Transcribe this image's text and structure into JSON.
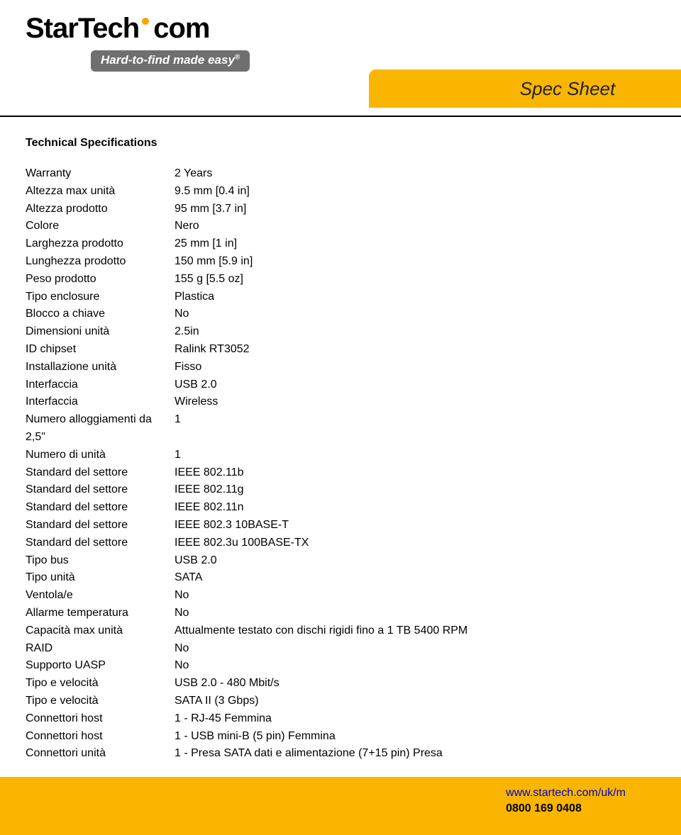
{
  "brand": {
    "logo_left": "StarTech",
    "logo_right": "com",
    "tagline": "Hard-to-find made easy",
    "tagline_mark": "®",
    "tab_label": "Spec Sheet",
    "dot_color": "#f7a400",
    "tab_color": "#f9b500",
    "tagline_bg": "#6f6f6f"
  },
  "section_title": "Technical Specifications",
  "specs": [
    {
      "label": "Warranty",
      "value": "2 Years"
    },
    {
      "label": "Altezza max unità",
      "value": "9.5 mm [0.4 in]"
    },
    {
      "label": "Altezza prodotto",
      "value": "95 mm [3.7 in]"
    },
    {
      "label": "Colore",
      "value": "Nero"
    },
    {
      "label": "Larghezza prodotto",
      "value": "25 mm [1 in]"
    },
    {
      "label": "Lunghezza prodotto",
      "value": "150 mm [5.9 in]"
    },
    {
      "label": "Peso prodotto",
      "value": "155 g [5.5 oz]"
    },
    {
      "label": "Tipo enclosure",
      "value": "Plastica"
    },
    {
      "label": "Blocco a chiave",
      "value": "No"
    },
    {
      "label": "Dimensioni unità",
      "value": "2.5in"
    },
    {
      "label": "ID chipset",
      "value": "Ralink RT3052"
    },
    {
      "label": "Installazione unità",
      "value": "Fisso"
    },
    {
      "label": "Interfaccia",
      "value": "USB 2.0"
    },
    {
      "label": "Interfaccia",
      "value": "Wireless"
    },
    {
      "label": "Numero alloggiamenti da 2,5\"",
      "value": "1"
    },
    {
      "label": "Numero di unità",
      "value": "1"
    },
    {
      "label": "Standard del settore",
      "value": "IEEE 802.11b"
    },
    {
      "label": "Standard del settore",
      "value": "IEEE 802.11g"
    },
    {
      "label": "Standard del settore",
      "value": "IEEE 802.11n"
    },
    {
      "label": "Standard del settore",
      "value": "IEEE 802.3 10BASE-T"
    },
    {
      "label": "Standard del settore",
      "value": "IEEE 802.3u 100BASE-TX"
    },
    {
      "label": "Tipo bus",
      "value": "USB 2.0"
    },
    {
      "label": "Tipo unità",
      "value": "SATA"
    },
    {
      "label": "Ventola/e",
      "value": "No"
    },
    {
      "label": "Allarme temperatura",
      "value": "No"
    },
    {
      "label": "Capacità max unità",
      "value": "Attualmente testato con dischi rigidi fino a 1 TB 5400 RPM"
    },
    {
      "label": "RAID",
      "value": "No"
    },
    {
      "label": "Supporto UASP",
      "value": "No"
    },
    {
      "label": "Tipo e velocità",
      "value": "USB 2.0 - 480 Mbit/s"
    },
    {
      "label": "Tipo e velocità",
      "value": "SATA II (3 Gbps)"
    },
    {
      "label": "Connettori host",
      "value": "1 - RJ-45 Femmina"
    },
    {
      "label": "Connettori host",
      "value": "1 - USB mini-B (5 pin) Femmina"
    },
    {
      "label": "Connettori unità",
      "value": "1 - Presa SATA dati e alimentazione (7+15 pin) Presa"
    }
  ],
  "footer": {
    "url": "www.startech.com/uk/m",
    "phone": "0800 169 0408",
    "bar_color": "#f9b500",
    "url_color": "#0000cc"
  }
}
